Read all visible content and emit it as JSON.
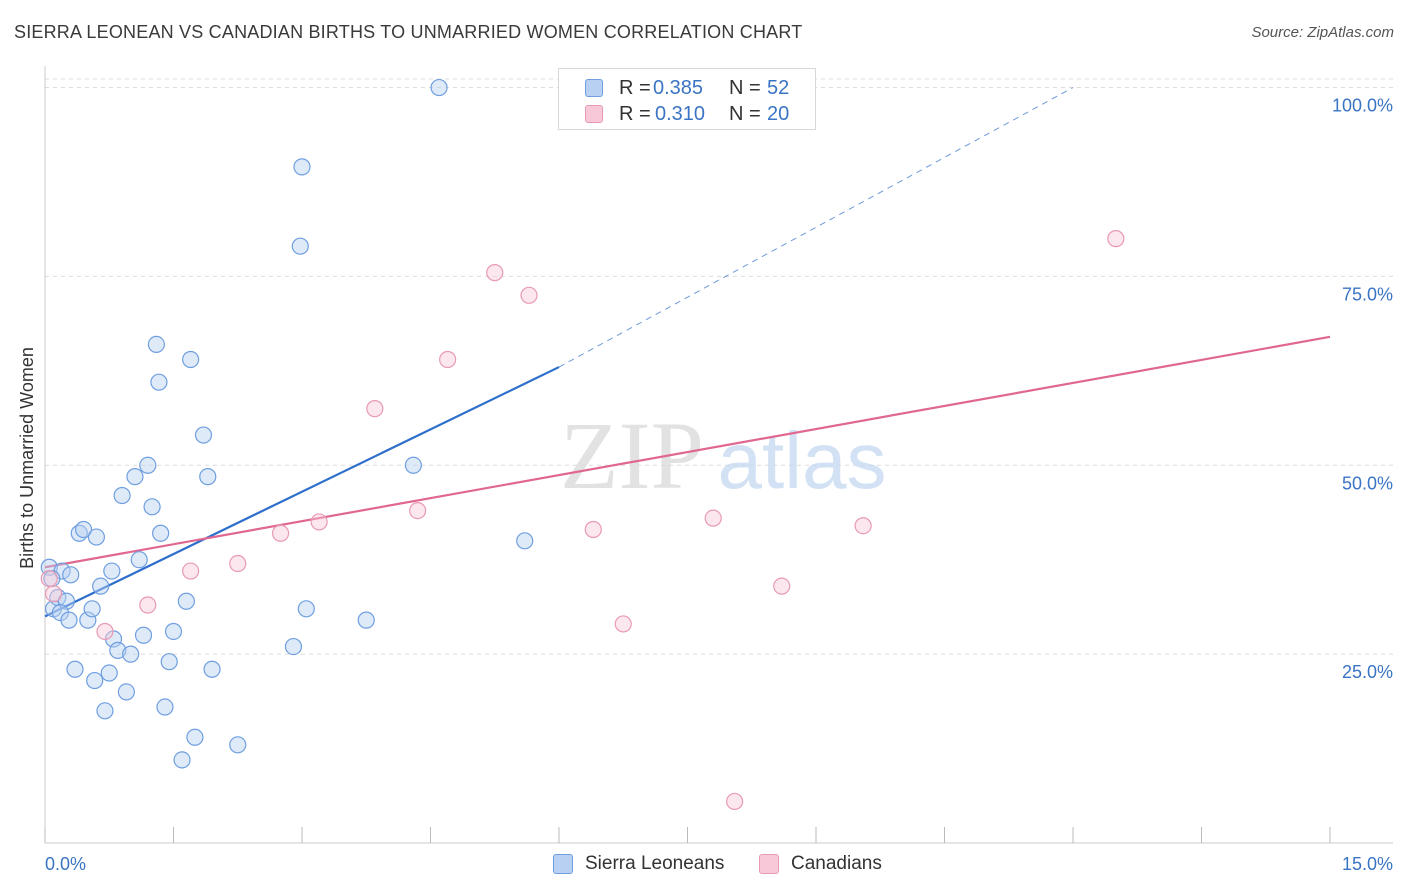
{
  "chart_data": {
    "type": "scatter",
    "title": "SIERRA LEONEAN VS CANADIAN BIRTHS TO UNMARRIED WOMEN CORRELATION CHART",
    "source": "Source: ZipAtlas.com",
    "xlabel": "",
    "ylabel": "Births to Unmarried Women",
    "xlim": [
      0,
      15
    ],
    "ylim": [
      0,
      101
    ],
    "x_tick_labels": {
      "left": "0.0%",
      "right": "15.0%"
    },
    "y_ticks": [
      {
        "value": 25,
        "label": "25.0%"
      },
      {
        "value": 50,
        "label": "50.0%"
      },
      {
        "value": 75,
        "label": "75.0%"
      },
      {
        "value": 100,
        "label": "100.0%"
      }
    ],
    "watermark": {
      "zip": "ZIP",
      "atlas": "atlas"
    },
    "legend": [
      {
        "series": "Sierra Leoneans",
        "r_label": "R =",
        "r": "0.385",
        "n_label": "N =",
        "n": "52"
      },
      {
        "series": "Canadians",
        "r_label": "R =",
        "r": "0.310",
        "n_label": "N =",
        "n": "20"
      }
    ],
    "series": [
      {
        "name": "Sierra Leoneans",
        "color": "#6f9fe0",
        "fill": "#b8d0f2",
        "line_color": "#2f6fcc",
        "trend": {
          "x0": 0.0,
          "y0": 30.0,
          "x1": 6.0,
          "y1": 63.0,
          "dash_x1": 12.0,
          "dash_y1": 100.0
        },
        "points": [
          [
            0.05,
            36.5
          ],
          [
            0.1,
            31.0
          ],
          [
            0.15,
            32.5
          ],
          [
            0.2,
            36.0
          ],
          [
            0.25,
            32.0
          ],
          [
            0.3,
            35.5
          ],
          [
            0.35,
            23.0
          ],
          [
            0.4,
            41.0
          ],
          [
            0.45,
            41.5
          ],
          [
            0.5,
            29.5
          ],
          [
            0.55,
            31.0
          ],
          [
            0.6,
            40.5
          ],
          [
            0.65,
            34.0
          ],
          [
            0.7,
            17.5
          ],
          [
            0.75,
            22.5
          ],
          [
            0.8,
            27.0
          ],
          [
            0.85,
            25.5
          ],
          [
            0.9,
            46.0
          ],
          [
            0.95,
            20.0
          ],
          [
            1.0,
            25.0
          ],
          [
            1.05,
            48.5
          ],
          [
            1.1,
            37.5
          ],
          [
            1.15,
            27.5
          ],
          [
            1.2,
            50.0
          ],
          [
            1.25,
            44.5
          ],
          [
            1.3,
            66.0
          ],
          [
            1.33,
            61.0
          ],
          [
            1.35,
            41.0
          ],
          [
            1.4,
            18.0
          ],
          [
            1.45,
            24.0
          ],
          [
            1.5,
            28.0
          ],
          [
            1.6,
            11.0
          ],
          [
            1.65,
            32.0
          ],
          [
            1.7,
            64.0
          ],
          [
            1.75,
            14.0
          ],
          [
            1.85,
            54.0
          ],
          [
            1.9,
            48.5
          ],
          [
            1.95,
            23.0
          ],
          [
            2.25,
            13.0
          ],
          [
            2.9,
            26.0
          ],
          [
            2.98,
            79.0
          ],
          [
            3.0,
            89.5
          ],
          [
            3.05,
            31.0
          ],
          [
            3.75,
            29.5
          ],
          [
            4.3,
            50.0
          ],
          [
            4.6,
            100.0
          ],
          [
            5.6,
            40.0
          ],
          [
            0.08,
            35.0
          ],
          [
            0.18,
            30.5
          ],
          [
            0.28,
            29.5
          ],
          [
            0.58,
            21.5
          ],
          [
            0.78,
            36.0
          ]
        ]
      },
      {
        "name": "Canadians",
        "color": "#e89ab3",
        "fill": "#f7c9d8",
        "line_color": "#e06790",
        "trend": {
          "x0": 0.0,
          "y0": 36.5,
          "x1": 15.0,
          "y1": 67.0
        },
        "points": [
          [
            0.1,
            33.0
          ],
          [
            0.7,
            28.0
          ],
          [
            1.2,
            31.5
          ],
          [
            1.7,
            36.0
          ],
          [
            2.25,
            37.0
          ],
          [
            2.75,
            41.0
          ],
          [
            3.2,
            42.5
          ],
          [
            3.85,
            57.5
          ],
          [
            4.35,
            44.0
          ],
          [
            4.7,
            64.0
          ],
          [
            5.25,
            75.5
          ],
          [
            5.65,
            72.5
          ],
          [
            6.4,
            41.5
          ],
          [
            6.75,
            29.0
          ],
          [
            7.8,
            43.0
          ],
          [
            8.05,
            5.5
          ],
          [
            8.6,
            34.0
          ],
          [
            9.55,
            42.0
          ],
          [
            12.5,
            80.0
          ],
          [
            0.05,
            35.0
          ]
        ]
      }
    ]
  }
}
